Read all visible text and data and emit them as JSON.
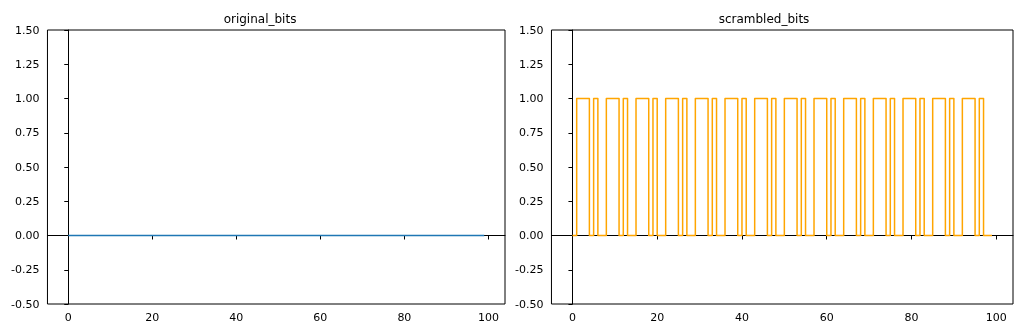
{
  "chart_data": [
    {
      "type": "line",
      "title": "original_bits",
      "x": [
        0,
        1,
        2,
        3,
        4,
        5,
        6,
        7,
        8,
        9,
        10,
        11,
        12,
        13,
        14,
        15,
        16,
        17,
        18,
        19,
        20,
        21,
        22,
        23,
        24,
        25,
        26,
        27,
        28,
        29,
        30,
        31,
        32,
        33,
        34,
        35,
        36,
        37,
        38,
        39,
        40,
        41,
        42,
        43,
        44,
        45,
        46,
        47,
        48,
        49,
        50,
        51,
        52,
        53,
        54,
        55,
        56,
        57,
        58,
        59,
        60,
        61,
        62,
        63,
        64,
        65,
        66,
        67,
        68,
        69,
        70,
        71,
        72,
        73,
        74,
        75,
        76,
        77,
        78,
        79,
        80,
        81,
        82,
        83,
        84,
        85,
        86,
        87,
        88,
        89,
        90,
        91,
        92,
        93,
        94,
        95,
        96,
        97,
        98,
        99
      ],
      "series": [
        {
          "color": "#1f77b4",
          "values": [
            0,
            0,
            0,
            0,
            0,
            0,
            0,
            0,
            0,
            0,
            0,
            0,
            0,
            0,
            0,
            0,
            0,
            0,
            0,
            0,
            0,
            0,
            0,
            0,
            0,
            0,
            0,
            0,
            0,
            0,
            0,
            0,
            0,
            0,
            0,
            0,
            0,
            0,
            0,
            0,
            0,
            0,
            0,
            0,
            0,
            0,
            0,
            0,
            0,
            0,
            0,
            0,
            0,
            0,
            0,
            0,
            0,
            0,
            0,
            0,
            0,
            0,
            0,
            0,
            0,
            0,
            0,
            0,
            0,
            0,
            0,
            0,
            0,
            0,
            0,
            0,
            0,
            0,
            0,
            0,
            0,
            0,
            0,
            0,
            0,
            0,
            0,
            0,
            0,
            0,
            0,
            0,
            0,
            0,
            0,
            0,
            0,
            0,
            0,
            0
          ]
        }
      ],
      "xlim": [
        -4.95,
        103.95
      ],
      "xticks": [
        0,
        20,
        40,
        60,
        80,
        100
      ],
      "ylim": [
        -0.5,
        1.5
      ],
      "yticks": [
        {
          "value": -0.5,
          "label": "-0.50"
        },
        {
          "value": -0.25,
          "label": "-0.25"
        },
        {
          "value": 0,
          "label": "0.00"
        },
        {
          "value": 0.25,
          "label": "0.25"
        },
        {
          "value": 0.5,
          "label": "0.50"
        },
        {
          "value": 0.75,
          "label": "0.75"
        },
        {
          "value": 1,
          "label": "1.00"
        },
        {
          "value": 1.25,
          "label": "1.25"
        },
        {
          "value": 1.5,
          "label": "1.50"
        }
      ]
    },
    {
      "type": "step",
      "title": "scrambled_bits",
      "x": [
        0,
        1,
        2,
        3,
        4,
        5,
        6,
        7,
        8,
        9,
        10,
        11,
        12,
        13,
        14,
        15,
        16,
        17,
        18,
        19,
        20,
        21,
        22,
        23,
        24,
        25,
        26,
        27,
        28,
        29,
        30,
        31,
        32,
        33,
        34,
        35,
        36,
        37,
        38,
        39,
        40,
        41,
        42,
        43,
        44,
        45,
        46,
        47,
        48,
        49,
        50,
        51,
        52,
        53,
        54,
        55,
        56,
        57,
        58,
        59,
        60,
        61,
        62,
        63,
        64,
        65,
        66,
        67,
        68,
        69,
        70,
        71,
        72,
        73,
        74,
        75,
        76,
        77,
        78,
        79,
        80,
        81,
        82,
        83,
        84,
        85,
        86,
        87,
        88,
        89,
        90,
        91,
        92,
        93,
        94,
        95,
        96,
        97,
        98,
        99
      ],
      "series": [
        {
          "color": "#ffa500",
          "values": [
            0,
            0,
            1,
            1,
            1,
            0,
            1,
            0,
            0,
            1,
            1,
            1,
            0,
            1,
            0,
            0,
            1,
            1,
            1,
            0,
            1,
            0,
            0,
            1,
            1,
            1,
            0,
            1,
            0,
            0,
            1,
            1,
            1,
            0,
            1,
            0,
            0,
            1,
            1,
            1,
            0,
            1,
            0,
            0,
            1,
            1,
            1,
            0,
            1,
            0,
            0,
            1,
            1,
            1,
            0,
            1,
            0,
            0,
            1,
            1,
            1,
            0,
            1,
            0,
            0,
            1,
            1,
            1,
            0,
            1,
            0,
            0,
            1,
            1,
            1,
            0,
            1,
            0,
            0,
            1,
            1,
            1,
            0,
            1,
            0,
            0,
            1,
            1,
            1,
            0,
            1,
            0,
            0,
            1,
            1,
            1,
            0,
            1,
            0,
            0
          ]
        }
      ],
      "xlim": [
        -4.95,
        103.95
      ],
      "xticks": [
        0,
        20,
        40,
        60,
        80,
        100
      ],
      "ylim": [
        -0.5,
        1.5
      ],
      "yticks": [
        {
          "value": -0.5,
          "label": "-0.50"
        },
        {
          "value": -0.25,
          "label": "-0.25"
        },
        {
          "value": 0,
          "label": "0.00"
        },
        {
          "value": 0.25,
          "label": "0.25"
        },
        {
          "value": 0.5,
          "label": "0.50"
        },
        {
          "value": 0.75,
          "label": "0.75"
        },
        {
          "value": 1,
          "label": "1.00"
        },
        {
          "value": 1.25,
          "label": "1.25"
        },
        {
          "value": 1.5,
          "label": "1.50"
        }
      ]
    }
  ]
}
